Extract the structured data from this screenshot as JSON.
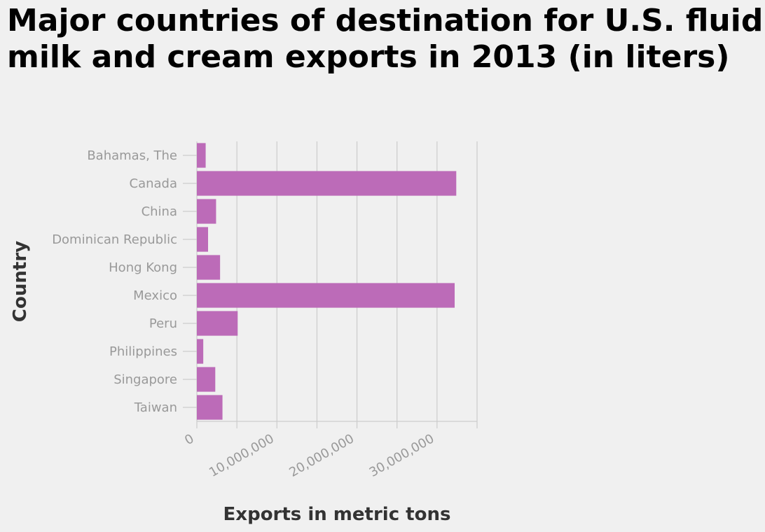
{
  "title": "Major countries of destination for U.S. fluid milk and cream exports in 2013 (in liters)",
  "colors": {
    "bar": "#bc6bb8",
    "grid": "#cccccc",
    "background": "#f0f0f0"
  },
  "chart_data": {
    "type": "bar",
    "orientation": "horizontal",
    "title": "Major countries of destination for U.S. fluid milk and cream exports in 2013 (in liters)",
    "xlabel": "Exports in metric tons",
    "ylabel": "Country",
    "categories": [
      "Bahamas, The",
      "Canada",
      "China",
      "Dominican Republic",
      "Hong Kong",
      "Mexico",
      "Peru",
      "Philippines",
      "Singapore",
      "Taiwan"
    ],
    "values": [
      1100000,
      32400000,
      2400000,
      1400000,
      2900000,
      32200000,
      5100000,
      800000,
      2300000,
      3200000
    ],
    "xlim": [
      0,
      35000000
    ],
    "xticks": [
      0,
      10000000,
      20000000,
      30000000
    ],
    "xtick_labels": [
      "0",
      "10,000,000",
      "20,000,000",
      "30,000,000"
    ],
    "grid": true,
    "legend": "none"
  }
}
